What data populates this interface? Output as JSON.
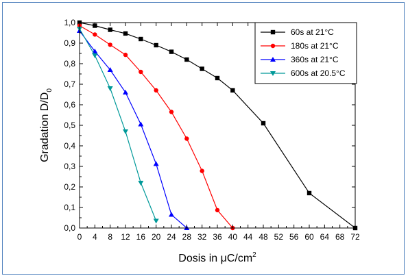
{
  "chart_data": {
    "type": "line",
    "title": "",
    "xlabel_prefix": "Dosis in ",
    "xlabel_mu": "μ",
    "xlabel_unit": "C/cm",
    "xlabel_sup": "2",
    "ylabel_main": "Gradation D/D",
    "ylabel_sub": "0",
    "xlim": [
      0,
      72
    ],
    "ylim": [
      0.0,
      1.0
    ],
    "x_ticks": [
      "0",
      "4",
      "8",
      "12",
      "16",
      "20",
      "24",
      "28",
      "32",
      "36",
      "40",
      "44",
      "48",
      "52",
      "56",
      "60",
      "64",
      "68",
      "72"
    ],
    "y_ticks": [
      "0,0",
      "0,1",
      "0,2",
      "0,3",
      "0,4",
      "0,5",
      "0,6",
      "0,7",
      "0,8",
      "0,9",
      "1,0"
    ],
    "grid": false,
    "legend_position": "top-right",
    "series": [
      {
        "name": "60s at 21°C",
        "color": "#000000",
        "marker": "square",
        "x": [
          0,
          4,
          8,
          12,
          16,
          20,
          24,
          28,
          32,
          36,
          40,
          48,
          60,
          72
        ],
        "y": [
          1.0,
          0.985,
          0.965,
          0.947,
          0.92,
          0.89,
          0.858,
          0.82,
          0.775,
          0.73,
          0.67,
          0.51,
          0.17,
          0.0
        ]
      },
      {
        "name": "180s at 21°C",
        "color": "#ff0000",
        "marker": "circle",
        "x": [
          0,
          4,
          8,
          12,
          16,
          20,
          24,
          28,
          32,
          36,
          40
        ],
        "y": [
          0.985,
          0.942,
          0.892,
          0.843,
          0.76,
          0.67,
          0.565,
          0.435,
          0.278,
          0.087,
          0.0
        ]
      },
      {
        "name": "360s at 21°C",
        "color": "#0000ff",
        "marker": "triangle-up",
        "x": [
          0,
          4,
          8,
          12,
          16,
          20,
          24,
          28
        ],
        "y": [
          0.96,
          0.86,
          0.77,
          0.66,
          0.505,
          0.312,
          0.065,
          0.0
        ]
      },
      {
        "name": "600s at 20.5°C",
        "color": "#009999",
        "marker": "triangle-down",
        "x": [
          0,
          4,
          8,
          12,
          16,
          20
        ],
        "y": [
          0.97,
          0.84,
          0.68,
          0.47,
          0.22,
          0.035
        ]
      }
    ]
  }
}
